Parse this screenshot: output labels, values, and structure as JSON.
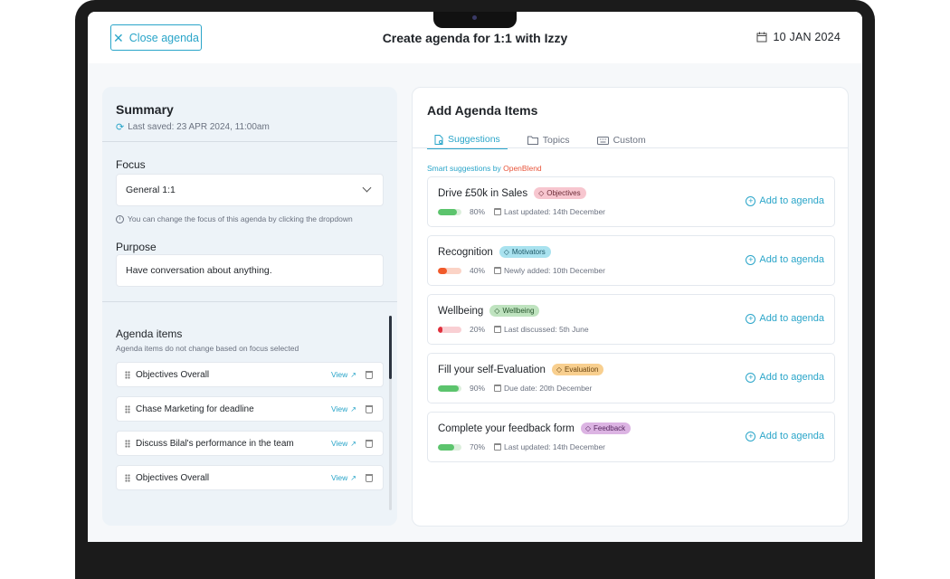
{
  "header": {
    "close_label": "Close agenda",
    "title": "Create agenda for 1:1 with Izzy",
    "date": "10 JAN 2024"
  },
  "summary": {
    "title": "Summary",
    "last_saved": "Last saved: 23 APR 2024, 11:00am",
    "focus_label": "Focus",
    "focus_value": "General 1:1",
    "focus_hint": "You can change the focus of this agenda by clicking  the dropdown",
    "purpose_label": "Purpose",
    "purpose_value": "Have conversation about anything.",
    "agenda_label": "Agenda items",
    "agenda_sub": "Agenda items do not change based on focus selected",
    "view_label": "View",
    "items": [
      {
        "label": "Objectives Overall"
      },
      {
        "label": "Chase Marketing for deadline"
      },
      {
        "label": "Discuss Bilal's performance in the team"
      },
      {
        "label": "Objectives Overall"
      }
    ]
  },
  "add_panel": {
    "title": "Add Agenda Items",
    "tabs": [
      {
        "label": "Suggestions",
        "icon": "doc-icon"
      },
      {
        "label": "Topics",
        "icon": "folder-icon"
      },
      {
        "label": "Custom",
        "icon": "keyboard-icon"
      }
    ],
    "smart_prefix": "Smart suggestions by",
    "smart_brand": "OpenBlend",
    "add_label": "Add to agenda",
    "suggestions": [
      {
        "title": "Drive £50k in Sales",
        "tag": "Objectives",
        "progress": 80,
        "pct": "80%",
        "meta": "Last updated: 14th December"
      },
      {
        "title": "Recognition",
        "tag": "Motivators",
        "progress": 40,
        "pct": "40%",
        "meta": "Newly added: 10th December"
      },
      {
        "title": "Wellbeing",
        "tag": "Wellbeing",
        "progress": 20,
        "pct": "20%",
        "meta": "Last discussed: 5th June"
      },
      {
        "title": "Fill your self-Evaluation",
        "tag": "Evaluation",
        "progress": 90,
        "pct": "90%",
        "meta": "Due date: 20th December"
      },
      {
        "title": "Complete your feedback form",
        "tag": "Feedback",
        "progress": 70,
        "pct": "70%",
        "meta": "Last updated: 14th December"
      }
    ]
  },
  "colors": {
    "accent": "#2aa5c9",
    "brand": "#e8553b",
    "tag_objectives_bg": "#f7c6cf",
    "tag_motivators_bg": "#a9e2ef",
    "tag_wellbeing_bg": "#bfe3bf",
    "tag_evaluation_bg": "#f8cf8f",
    "tag_feedback_bg": "#dcb4e3",
    "progress_green": "#5cc46d",
    "progress_orange": "#f15a2a",
    "progress_red": "#e0303c"
  }
}
